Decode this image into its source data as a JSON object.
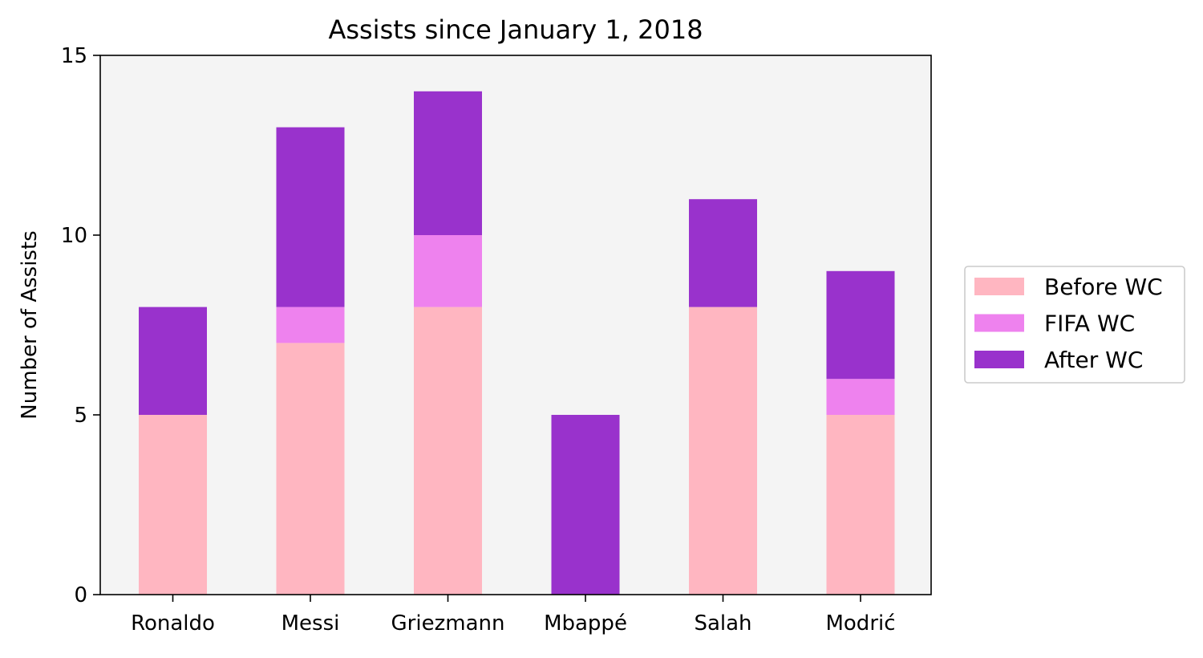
{
  "chart_data": {
    "type": "bar",
    "stacked": true,
    "title": "Assists since January 1, 2018",
    "xlabel": "",
    "ylabel": "Number of Assists",
    "ylim": [
      0,
      15
    ],
    "yticks": [
      0,
      5,
      10,
      15
    ],
    "yticklabels": [
      "0",
      "5",
      "10",
      "15"
    ],
    "categories": [
      "Ronaldo",
      "Messi",
      "Griezmann",
      "Mbappé",
      "Salah",
      "Modrić"
    ],
    "series": [
      {
        "name": "Before WC",
        "color": "#ffb6c1",
        "values": [
          5,
          7,
          8,
          0,
          8,
          5
        ]
      },
      {
        "name": "FIFA WC",
        "color": "#ee82ee",
        "values": [
          0,
          1,
          2,
          0,
          0,
          1
        ]
      },
      {
        "name": "After WC",
        "color": "#9932cc",
        "values": [
          3,
          5,
          4,
          5,
          3,
          3
        ]
      }
    ],
    "grid": false,
    "legend_position": "center-right, outside plot",
    "plot_background": "#f4f4f4"
  }
}
